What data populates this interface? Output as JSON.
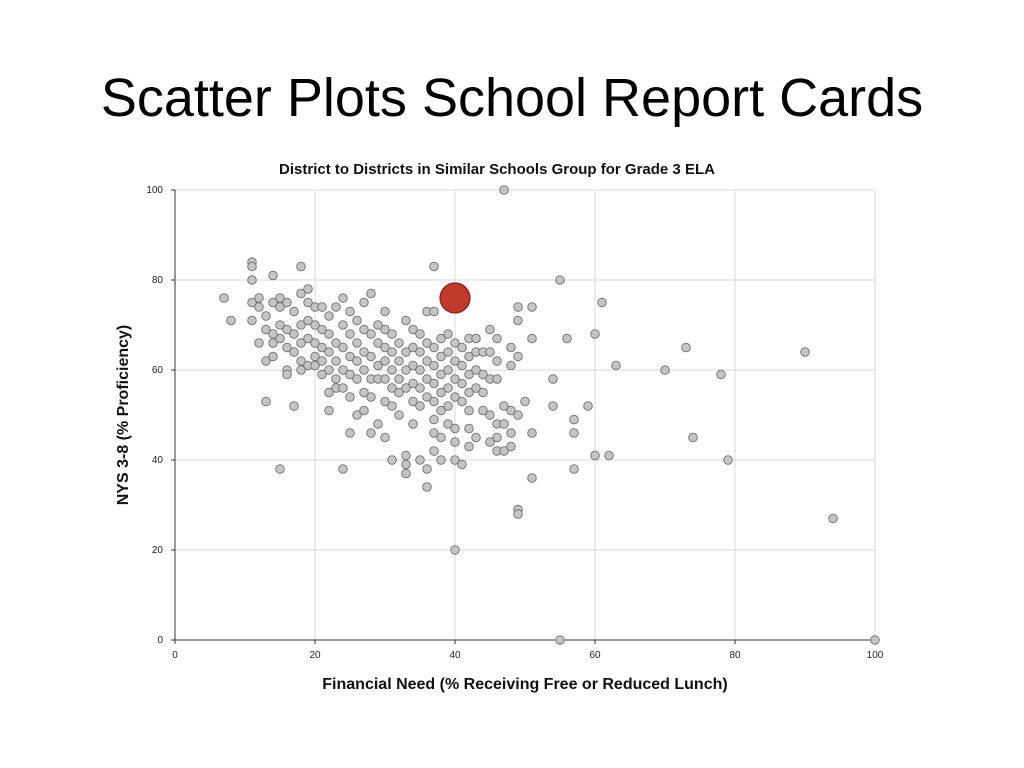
{
  "slide": {
    "title": "Scatter Plots School Report Cards"
  },
  "colors": {
    "point_fill": "#c4c4c4",
    "point_stroke": "#6e6e6e",
    "highlight_fill": "#c0392b",
    "highlight_stroke": "#8b1f14",
    "grid": "#d9d9d9",
    "axis": "#333333"
  },
  "chart_data": {
    "type": "scatter",
    "title": "District to Districts in Similar Schools Group for Grade 3 ELA",
    "xlabel": "Financial Need (% Receiving Free or Reduced Lunch)",
    "ylabel": "NYS 3-8 (% Proficiency)",
    "xlim": [
      0,
      100
    ],
    "ylim": [
      0,
      100
    ],
    "xticks": [
      0,
      20,
      40,
      60,
      80,
      100
    ],
    "yticks": [
      0,
      20,
      40,
      60,
      80,
      100
    ],
    "grid": true,
    "highlight": {
      "x": 40,
      "y": 76
    },
    "points": [
      [
        7,
        76
      ],
      [
        8,
        71
      ],
      [
        11,
        84
      ],
      [
        11,
        83
      ],
      [
        11,
        80
      ],
      [
        11,
        75
      ],
      [
        11,
        71
      ],
      [
        12,
        76
      ],
      [
        12,
        74
      ],
      [
        12,
        66
      ],
      [
        13,
        72
      ],
      [
        13,
        69
      ],
      [
        13,
        62
      ],
      [
        13,
        53
      ],
      [
        14,
        81
      ],
      [
        14,
        75
      ],
      [
        14,
        68
      ],
      [
        14,
        66
      ],
      [
        14,
        63
      ],
      [
        15,
        76
      ],
      [
        15,
        74
      ],
      [
        15,
        70
      ],
      [
        15,
        67
      ],
      [
        15,
        38
      ],
      [
        16,
        75
      ],
      [
        16,
        69
      ],
      [
        16,
        65
      ],
      [
        16,
        60
      ],
      [
        16,
        59
      ],
      [
        17,
        73
      ],
      [
        17,
        68
      ],
      [
        17,
        64
      ],
      [
        17,
        52
      ],
      [
        18,
        83
      ],
      [
        18,
        77
      ],
      [
        18,
        70
      ],
      [
        18,
        66
      ],
      [
        18,
        62
      ],
      [
        18,
        60
      ],
      [
        19,
        78
      ],
      [
        19,
        75
      ],
      [
        19,
        71
      ],
      [
        19,
        67
      ],
      [
        19,
        61
      ],
      [
        20,
        74
      ],
      [
        20,
        70
      ],
      [
        20,
        66
      ],
      [
        20,
        63
      ],
      [
        20,
        61
      ],
      [
        21,
        74
      ],
      [
        21,
        69
      ],
      [
        21,
        65
      ],
      [
        21,
        62
      ],
      [
        21,
        59
      ],
      [
        22,
        72
      ],
      [
        22,
        68
      ],
      [
        22,
        64
      ],
      [
        22,
        60
      ],
      [
        22,
        55
      ],
      [
        22,
        51
      ],
      [
        23,
        74
      ],
      [
        23,
        66
      ],
      [
        23,
        62
      ],
      [
        23,
        58
      ],
      [
        23,
        56
      ],
      [
        24,
        76
      ],
      [
        24,
        70
      ],
      [
        24,
        65
      ],
      [
        24,
        60
      ],
      [
        24,
        56
      ],
      [
        24,
        38
      ],
      [
        25,
        73
      ],
      [
        25,
        68
      ],
      [
        25,
        63
      ],
      [
        25,
        59
      ],
      [
        25,
        54
      ],
      [
        25,
        46
      ],
      [
        26,
        71
      ],
      [
        26,
        66
      ],
      [
        26,
        62
      ],
      [
        26,
        58
      ],
      [
        26,
        50
      ],
      [
        27,
        75
      ],
      [
        27,
        69
      ],
      [
        27,
        64
      ],
      [
        27,
        60
      ],
      [
        27,
        55
      ],
      [
        27,
        51
      ],
      [
        28,
        77
      ],
      [
        28,
        68
      ],
      [
        28,
        63
      ],
      [
        28,
        58
      ],
      [
        28,
        54
      ],
      [
        28,
        46
      ],
      [
        29,
        70
      ],
      [
        29,
        66
      ],
      [
        29,
        61
      ],
      [
        29,
        58
      ],
      [
        29,
        48
      ],
      [
        30,
        73
      ],
      [
        30,
        69
      ],
      [
        30,
        65
      ],
      [
        30,
        62
      ],
      [
        30,
        58
      ],
      [
        30,
        53
      ],
      [
        30,
        45
      ],
      [
        31,
        68
      ],
      [
        31,
        64
      ],
      [
        31,
        60
      ],
      [
        31,
        56
      ],
      [
        31,
        52
      ],
      [
        31,
        40
      ],
      [
        32,
        66
      ],
      [
        32,
        62
      ],
      [
        32,
        58
      ],
      [
        32,
        55
      ],
      [
        32,
        50
      ],
      [
        33,
        71
      ],
      [
        33,
        64
      ],
      [
        33,
        60
      ],
      [
        33,
        56
      ],
      [
        33,
        41
      ],
      [
        33,
        39
      ],
      [
        33,
        37
      ],
      [
        34,
        69
      ],
      [
        34,
        65
      ],
      [
        34,
        61
      ],
      [
        34,
        57
      ],
      [
        34,
        53
      ],
      [
        34,
        48
      ],
      [
        35,
        68
      ],
      [
        35,
        64
      ],
      [
        35,
        60
      ],
      [
        35,
        56
      ],
      [
        35,
        52
      ],
      [
        35,
        40
      ],
      [
        36,
        73
      ],
      [
        36,
        66
      ],
      [
        36,
        62
      ],
      [
        36,
        58
      ],
      [
        36,
        54
      ],
      [
        36,
        38
      ],
      [
        36,
        34
      ],
      [
        37,
        83
      ],
      [
        37,
        73
      ],
      [
        37,
        65
      ],
      [
        37,
        61
      ],
      [
        37,
        57
      ],
      [
        37,
        53
      ],
      [
        37,
        49
      ],
      [
        37,
        46
      ],
      [
        37,
        42
      ],
      [
        38,
        67
      ],
      [
        38,
        63
      ],
      [
        38,
        59
      ],
      [
        38,
        55
      ],
      [
        38,
        51
      ],
      [
        38,
        45
      ],
      [
        38,
        40
      ],
      [
        39,
        68
      ],
      [
        39,
        64
      ],
      [
        39,
        60
      ],
      [
        39,
        56
      ],
      [
        39,
        52
      ],
      [
        39,
        48
      ],
      [
        40,
        66
      ],
      [
        40,
        62
      ],
      [
        40,
        58
      ],
      [
        40,
        54
      ],
      [
        40,
        47
      ],
      [
        40,
        44
      ],
      [
        40,
        40
      ],
      [
        40,
        20
      ],
      [
        41,
        65
      ],
      [
        41,
        61
      ],
      [
        41,
        57
      ],
      [
        41,
        53
      ],
      [
        41,
        39
      ],
      [
        42,
        67
      ],
      [
        42,
        63
      ],
      [
        42,
        59
      ],
      [
        42,
        55
      ],
      [
        42,
        51
      ],
      [
        42,
        47
      ],
      [
        42,
        43
      ],
      [
        43,
        67
      ],
      [
        43,
        64
      ],
      [
        43,
        60
      ],
      [
        43,
        56
      ],
      [
        43,
        45
      ],
      [
        44,
        64
      ],
      [
        44,
        59
      ],
      [
        44,
        55
      ],
      [
        44,
        51
      ],
      [
        45,
        69
      ],
      [
        45,
        64
      ],
      [
        45,
        58
      ],
      [
        45,
        50
      ],
      [
        45,
        44
      ],
      [
        46,
        67
      ],
      [
        46,
        62
      ],
      [
        46,
        58
      ],
      [
        46,
        48
      ],
      [
        46,
        45
      ],
      [
        46,
        42
      ],
      [
        47,
        100
      ],
      [
        47,
        52
      ],
      [
        47,
        48
      ],
      [
        47,
        42
      ],
      [
        48,
        65
      ],
      [
        48,
        61
      ],
      [
        48,
        51
      ],
      [
        48,
        46
      ],
      [
        48,
        43
      ],
      [
        49,
        74
      ],
      [
        49,
        71
      ],
      [
        49,
        63
      ],
      [
        49,
        50
      ],
      [
        49,
        29
      ],
      [
        49,
        28
      ],
      [
        50,
        53
      ],
      [
        51,
        74
      ],
      [
        51,
        67
      ],
      [
        51,
        46
      ],
      [
        51,
        36
      ],
      [
        54,
        58
      ],
      [
        54,
        52
      ],
      [
        55,
        80
      ],
      [
        55,
        0
      ],
      [
        56,
        67
      ],
      [
        57,
        49
      ],
      [
        57,
        46
      ],
      [
        57,
        38
      ],
      [
        59,
        52
      ],
      [
        60,
        68
      ],
      [
        60,
        41
      ],
      [
        61,
        75
      ],
      [
        62,
        41
      ],
      [
        63,
        61
      ],
      [
        70,
        60
      ],
      [
        73,
        65
      ],
      [
        74,
        45
      ],
      [
        78,
        59
      ],
      [
        79,
        40
      ],
      [
        90,
        64
      ],
      [
        94,
        27
      ],
      [
        100,
        0
      ]
    ]
  }
}
